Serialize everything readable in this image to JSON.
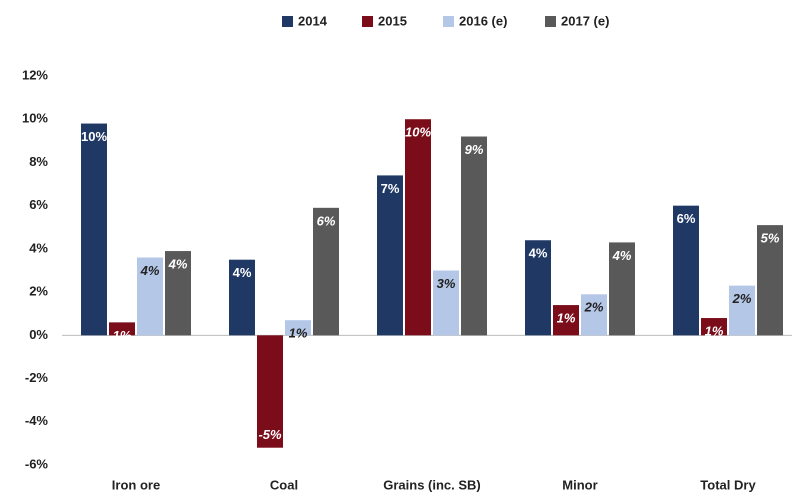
{
  "chart_data": {
    "type": "bar",
    "categories": [
      "Iron ore",
      "Coal",
      "Grains (inc. SB)",
      "Minor",
      "Total Dry"
    ],
    "series": [
      {
        "name": "2014",
        "color": "#1f3864",
        "values": [
          9.8,
          3.5,
          7.4,
          4.4,
          6.0
        ],
        "value_labels": [
          "10%",
          "4%",
          "7%",
          "4%",
          "6%"
        ]
      },
      {
        "name": "2015",
        "color": "#7b0c1a",
        "values": [
          0.6,
          -5.2,
          10.0,
          1.4,
          0.8
        ],
        "value_labels": [
          "1%",
          "-5%",
          "10%",
          "1%",
          "1%"
        ]
      },
      {
        "name": "2016 (e)",
        "color": "#b4c7e7",
        "values": [
          3.6,
          0.7,
          3.0,
          1.9,
          2.3
        ],
        "value_labels": [
          "4%",
          "1%",
          "3%",
          "2%",
          "2%"
        ]
      },
      {
        "name": "2017 (e)",
        "color": "#595959",
        "values": [
          3.9,
          5.9,
          9.2,
          4.3,
          5.1
        ],
        "value_labels": [
          "4%",
          "6%",
          "9%",
          "4%",
          "5%"
        ]
      }
    ],
    "ylim": [
      -6,
      12
    ],
    "yticks": [
      {
        "value": -6,
        "label": "-6%"
      },
      {
        "value": -4,
        "label": "-4%"
      },
      {
        "value": -2,
        "label": "-2%"
      },
      {
        "value": 0,
        "label": "0%"
      },
      {
        "value": 2,
        "label": "2%"
      },
      {
        "value": 4,
        "label": "4%"
      },
      {
        "value": 6,
        "label": "6%"
      },
      {
        "value": 8,
        "label": "8%"
      },
      {
        "value": 10,
        "label": "10%"
      },
      {
        "value": 12,
        "label": "12%"
      }
    ],
    "grid": false,
    "legend": "top"
  }
}
